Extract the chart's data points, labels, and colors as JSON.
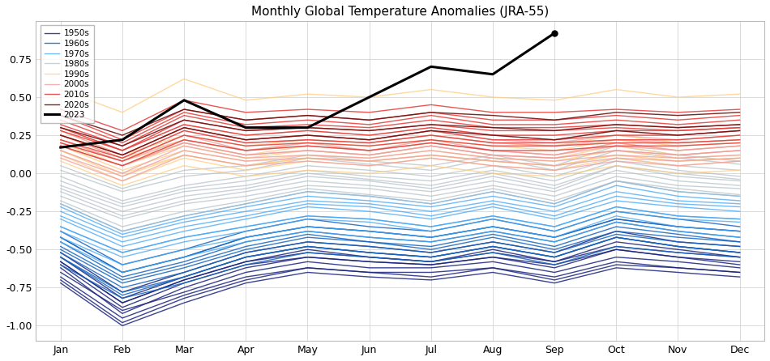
{
  "title": "Monthly Global Temperature Anomalies (JRA-55)",
  "months": [
    "Jan",
    "Feb",
    "Mar",
    "Apr",
    "May",
    "Jun",
    "Jul",
    "Aug",
    "Sep",
    "Oct",
    "Nov",
    "Dec"
  ],
  "decade_colors": {
    "1950s": "#1a237e",
    "1960s": "#1565c0",
    "1970s": "#42a5f5",
    "1980s": "#b0bec5",
    "1990s": "#ffcc80",
    "2000s": "#ef9a9a",
    "2010s": "#e53935",
    "2020s": "#6d1010",
    "2023": "#000000"
  },
  "decade_alphas": {
    "1950s": 0.85,
    "1960s": 0.85,
    "1970s": 0.75,
    "1980s": 0.7,
    "1990s": 0.75,
    "2000s": 0.75,
    "2010s": 0.85,
    "2020s": 0.9,
    "2023": 1.0
  },
  "decades": {
    "1950s": [
      [
        -0.62,
        -0.92,
        -0.75,
        -0.62,
        -0.55,
        -0.58,
        -0.6,
        -0.55,
        -0.62,
        -0.5,
        -0.55,
        -0.6
      ],
      [
        -0.58,
        -0.85,
        -0.7,
        -0.58,
        -0.52,
        -0.55,
        -0.58,
        -0.52,
        -0.58,
        -0.48,
        -0.52,
        -0.55
      ],
      [
        -0.68,
        -0.95,
        -0.8,
        -0.68,
        -0.62,
        -0.65,
        -0.65,
        -0.62,
        -0.68,
        -0.58,
        -0.62,
        -0.65
      ],
      [
        -0.55,
        -0.82,
        -0.68,
        -0.55,
        -0.48,
        -0.52,
        -0.55,
        -0.48,
        -0.55,
        -0.42,
        -0.48,
        -0.52
      ],
      [
        -0.72,
        -1.0,
        -0.85,
        -0.72,
        -0.65,
        -0.68,
        -0.7,
        -0.65,
        -0.72,
        -0.62,
        -0.65,
        -0.68
      ],
      [
        -0.6,
        -0.88,
        -0.72,
        -0.6,
        -0.55,
        -0.58,
        -0.6,
        -0.55,
        -0.6,
        -0.5,
        -0.55,
        -0.58
      ],
      [
        -0.65,
        -0.9,
        -0.78,
        -0.65,
        -0.58,
        -0.62,
        -0.62,
        -0.58,
        -0.65,
        -0.55,
        -0.58,
        -0.62
      ],
      [
        -0.52,
        -0.78,
        -0.65,
        -0.52,
        -0.45,
        -0.48,
        -0.52,
        -0.45,
        -0.52,
        -0.38,
        -0.45,
        -0.48
      ],
      [
        -0.7,
        -0.98,
        -0.82,
        -0.7,
        -0.62,
        -0.65,
        -0.68,
        -0.62,
        -0.7,
        -0.6,
        -0.62,
        -0.65
      ],
      [
        -0.58,
        -0.85,
        -0.7,
        -0.58,
        -0.5,
        -0.55,
        -0.58,
        -0.5,
        -0.58,
        -0.45,
        -0.5,
        -0.55
      ]
    ],
    "1960s": [
      [
        -0.5,
        -0.72,
        -0.62,
        -0.5,
        -0.42,
        -0.45,
        -0.5,
        -0.42,
        -0.5,
        -0.38,
        -0.42,
        -0.45
      ],
      [
        -0.42,
        -0.65,
        -0.55,
        -0.42,
        -0.35,
        -0.38,
        -0.42,
        -0.35,
        -0.42,
        -0.3,
        -0.35,
        -0.38
      ],
      [
        -0.55,
        -0.78,
        -0.68,
        -0.55,
        -0.48,
        -0.52,
        -0.55,
        -0.48,
        -0.55,
        -0.42,
        -0.48,
        -0.52
      ],
      [
        -0.45,
        -0.68,
        -0.58,
        -0.45,
        -0.38,
        -0.42,
        -0.45,
        -0.38,
        -0.45,
        -0.32,
        -0.38,
        -0.42
      ],
      [
        -0.6,
        -0.82,
        -0.72,
        -0.6,
        -0.52,
        -0.55,
        -0.58,
        -0.52,
        -0.6,
        -0.48,
        -0.52,
        -0.55
      ],
      [
        -0.38,
        -0.6,
        -0.5,
        -0.38,
        -0.3,
        -0.35,
        -0.38,
        -0.3,
        -0.38,
        -0.25,
        -0.3,
        -0.35
      ],
      [
        -0.52,
        -0.75,
        -0.65,
        -0.52,
        -0.45,
        -0.48,
        -0.52,
        -0.45,
        -0.52,
        -0.4,
        -0.45,
        -0.48
      ],
      [
        -0.48,
        -0.7,
        -0.6,
        -0.48,
        -0.4,
        -0.45,
        -0.48,
        -0.4,
        -0.48,
        -0.35,
        -0.4,
        -0.45
      ],
      [
        -0.55,
        -0.8,
        -0.68,
        -0.55,
        -0.48,
        -0.52,
        -0.55,
        -0.48,
        -0.55,
        -0.42,
        -0.48,
        -0.52
      ],
      [
        -0.42,
        -0.65,
        -0.55,
        -0.42,
        -0.35,
        -0.38,
        -0.42,
        -0.35,
        -0.42,
        -0.3,
        -0.35,
        -0.38
      ]
    ],
    "1970s": [
      [
        -0.35,
        -0.52,
        -0.42,
        -0.35,
        -0.28,
        -0.3,
        -0.35,
        -0.28,
        -0.35,
        -0.22,
        -0.28,
        -0.3
      ],
      [
        -0.28,
        -0.45,
        -0.35,
        -0.28,
        -0.2,
        -0.22,
        -0.28,
        -0.2,
        -0.28,
        -0.15,
        -0.2,
        -0.22
      ],
      [
        -0.42,
        -0.6,
        -0.5,
        -0.42,
        -0.35,
        -0.38,
        -0.42,
        -0.35,
        -0.42,
        -0.28,
        -0.35,
        -0.38
      ],
      [
        -0.22,
        -0.4,
        -0.3,
        -0.22,
        -0.15,
        -0.18,
        -0.22,
        -0.15,
        -0.22,
        -0.08,
        -0.15,
        -0.18
      ],
      [
        -0.38,
        -0.55,
        -0.45,
        -0.38,
        -0.3,
        -0.32,
        -0.38,
        -0.3,
        -0.38,
        -0.25,
        -0.3,
        -0.32
      ],
      [
        -0.3,
        -0.48,
        -0.38,
        -0.3,
        -0.22,
        -0.25,
        -0.3,
        -0.22,
        -0.3,
        -0.18,
        -0.22,
        -0.25
      ],
      [
        -0.45,
        -0.65,
        -0.55,
        -0.45,
        -0.38,
        -0.42,
        -0.45,
        -0.38,
        -0.45,
        -0.32,
        -0.38,
        -0.42
      ],
      [
        -0.2,
        -0.38,
        -0.28,
        -0.2,
        -0.12,
        -0.15,
        -0.2,
        -0.12,
        -0.2,
        -0.05,
        -0.12,
        -0.15
      ],
      [
        -0.35,
        -0.52,
        -0.42,
        -0.35,
        -0.28,
        -0.3,
        -0.35,
        -0.28,
        -0.35,
        -0.22,
        -0.28,
        -0.3
      ],
      [
        -0.25,
        -0.42,
        -0.32,
        -0.25,
        -0.18,
        -0.2,
        -0.25,
        -0.18,
        -0.25,
        -0.12,
        -0.18,
        -0.2
      ]
    ],
    "1980s": [
      [
        -0.12,
        -0.28,
        -0.18,
        -0.12,
        -0.05,
        -0.08,
        -0.12,
        -0.05,
        -0.12,
        0.02,
        -0.05,
        -0.08
      ],
      [
        -0.05,
        -0.2,
        -0.1,
        -0.05,
        0.02,
        -0.02,
        -0.05,
        0.02,
        -0.05,
        0.08,
        0.02,
        -0.02
      ],
      [
        -0.18,
        -0.35,
        -0.25,
        -0.18,
        -0.1,
        -0.14,
        -0.18,
        -0.1,
        -0.18,
        -0.05,
        -0.1,
        -0.14
      ],
      [
        0.02,
        -0.12,
        -0.02,
        0.02,
        0.1,
        0.06,
        0.02,
        0.1,
        0.02,
        0.15,
        0.1,
        0.06
      ],
      [
        -0.15,
        -0.3,
        -0.2,
        -0.15,
        -0.08,
        -0.1,
        -0.15,
        -0.08,
        -0.15,
        -0.02,
        -0.08,
        -0.1
      ],
      [
        -0.08,
        -0.22,
        -0.12,
        -0.08,
        0.0,
        -0.04,
        -0.08,
        0.0,
        -0.08,
        0.05,
        0.0,
        -0.04
      ],
      [
        -0.2,
        -0.38,
        -0.28,
        -0.2,
        -0.12,
        -0.15,
        -0.2,
        -0.12,
        -0.2,
        -0.05,
        -0.12,
        -0.15
      ],
      [
        0.05,
        -0.1,
        0.02,
        0.05,
        0.12,
        0.08,
        0.05,
        0.12,
        0.05,
        0.18,
        0.12,
        0.08
      ],
      [
        -0.1,
        -0.25,
        -0.15,
        -0.1,
        -0.02,
        -0.05,
        -0.1,
        -0.02,
        -0.1,
        0.05,
        -0.02,
        -0.05
      ],
      [
        -0.02,
        -0.18,
        -0.08,
        -0.02,
        0.05,
        0.02,
        -0.02,
        0.05,
        -0.02,
        0.1,
        0.05,
        0.02
      ]
    ],
    "1990s": [
      [
        0.15,
        -0.02,
        0.12,
        0.05,
        0.1,
        0.08,
        0.12,
        0.08,
        0.05,
        0.12,
        0.08,
        0.1
      ],
      [
        0.2,
        0.05,
        0.18,
        0.1,
        0.15,
        0.12,
        0.18,
        0.12,
        0.1,
        0.18,
        0.12,
        0.15
      ],
      [
        0.08,
        -0.08,
        0.05,
        -0.02,
        0.02,
        0.0,
        0.05,
        0.0,
        -0.02,
        0.05,
        0.0,
        0.02
      ],
      [
        0.25,
        0.1,
        0.22,
        0.15,
        0.2,
        0.18,
        0.22,
        0.18,
        0.15,
        0.22,
        0.18,
        0.2
      ],
      [
        0.12,
        -0.05,
        0.1,
        0.02,
        0.08,
        0.05,
        0.1,
        0.05,
        0.02,
        0.1,
        0.05,
        0.08
      ],
      [
        0.55,
        0.4,
        0.62,
        0.48,
        0.52,
        0.5,
        0.55,
        0.5,
        0.48,
        0.55,
        0.5,
        0.52
      ],
      [
        0.22,
        0.08,
        0.2,
        0.12,
        0.18,
        0.15,
        0.2,
        0.15,
        0.12,
        0.2,
        0.15,
        0.18
      ],
      [
        0.18,
        0.02,
        0.15,
        0.08,
        0.12,
        0.1,
        0.15,
        0.1,
        0.08,
        0.15,
        0.1,
        0.12
      ],
      [
        0.28,
        0.12,
        0.25,
        0.18,
        0.22,
        0.2,
        0.25,
        0.2,
        0.18,
        0.25,
        0.2,
        0.22
      ],
      [
        0.15,
        0.0,
        0.12,
        0.05,
        0.1,
        0.08,
        0.12,
        0.08,
        0.05,
        0.12,
        0.08,
        0.1
      ]
    ],
    "2000s": [
      [
        0.18,
        0.05,
        0.2,
        0.12,
        0.15,
        0.12,
        0.18,
        0.12,
        0.1,
        0.15,
        0.12,
        0.15
      ],
      [
        0.22,
        0.08,
        0.25,
        0.15,
        0.2,
        0.15,
        0.22,
        0.15,
        0.12,
        0.2,
        0.15,
        0.18
      ],
      [
        0.1,
        -0.05,
        0.12,
        0.05,
        0.08,
        0.05,
        0.1,
        0.05,
        0.02,
        0.08,
        0.05,
        0.08
      ],
      [
        0.28,
        0.12,
        0.3,
        0.22,
        0.25,
        0.22,
        0.28,
        0.22,
        0.2,
        0.25,
        0.22,
        0.25
      ],
      [
        0.15,
        0.0,
        0.18,
        0.1,
        0.12,
        0.1,
        0.15,
        0.1,
        0.08,
        0.12,
        0.1,
        0.12
      ],
      [
        0.25,
        0.1,
        0.28,
        0.2,
        0.22,
        0.2,
        0.25,
        0.2,
        0.18,
        0.22,
        0.2,
        0.22
      ],
      [
        0.12,
        -0.02,
        0.15,
        0.08,
        0.1,
        0.08,
        0.12,
        0.08,
        0.05,
        0.1,
        0.08,
        0.1
      ],
      [
        0.3,
        0.15,
        0.32,
        0.25,
        0.28,
        0.25,
        0.3,
        0.25,
        0.22,
        0.28,
        0.25,
        0.28
      ],
      [
        0.18,
        0.05,
        0.2,
        0.12,
        0.15,
        0.12,
        0.18,
        0.12,
        0.1,
        0.15,
        0.12,
        0.15
      ],
      [
        0.2,
        0.08,
        0.22,
        0.15,
        0.18,
        0.15,
        0.2,
        0.15,
        0.12,
        0.18,
        0.15,
        0.18
      ]
    ],
    "2010s": [
      [
        0.2,
        0.08,
        0.25,
        0.18,
        0.2,
        0.18,
        0.22,
        0.18,
        0.18,
        0.2,
        0.2,
        0.22
      ],
      [
        0.3,
        0.15,
        0.35,
        0.28,
        0.3,
        0.28,
        0.32,
        0.28,
        0.28,
        0.3,
        0.28,
        0.3
      ],
      [
        0.22,
        0.1,
        0.28,
        0.2,
        0.22,
        0.2,
        0.25,
        0.2,
        0.2,
        0.22,
        0.22,
        0.25
      ],
      [
        0.38,
        0.22,
        0.42,
        0.35,
        0.38,
        0.35,
        0.4,
        0.35,
        0.35,
        0.38,
        0.35,
        0.38
      ],
      [
        0.25,
        0.12,
        0.3,
        0.22,
        0.25,
        0.22,
        0.28,
        0.22,
        0.22,
        0.25,
        0.25,
        0.28
      ],
      [
        0.32,
        0.18,
        0.38,
        0.3,
        0.32,
        0.3,
        0.35,
        0.3,
        0.3,
        0.32,
        0.3,
        0.32
      ],
      [
        0.18,
        0.05,
        0.22,
        0.15,
        0.18,
        0.15,
        0.2,
        0.15,
        0.15,
        0.18,
        0.18,
        0.2
      ],
      [
        0.42,
        0.28,
        0.48,
        0.4,
        0.42,
        0.4,
        0.45,
        0.4,
        0.4,
        0.42,
        0.4,
        0.42
      ],
      [
        0.28,
        0.15,
        0.32,
        0.25,
        0.28,
        0.25,
        0.3,
        0.25,
        0.25,
        0.28,
        0.28,
        0.3
      ],
      [
        0.35,
        0.2,
        0.4,
        0.32,
        0.35,
        0.32,
        0.38,
        0.32,
        0.32,
        0.35,
        0.32,
        0.35
      ]
    ],
    "2020s": [
      [
        0.25,
        0.12,
        0.3,
        0.22,
        0.25,
        0.22,
        0.28,
        0.25,
        0.22,
        0.28,
        0.25,
        0.28
      ],
      [
        0.3,
        0.18,
        0.35,
        0.28,
        0.3,
        0.28,
        0.32,
        0.3,
        0.28,
        0.32,
        0.3,
        0.32
      ],
      [
        0.38,
        0.25,
        0.42,
        0.35,
        0.38,
        0.35,
        0.4,
        0.38,
        0.35,
        0.4,
        0.38,
        0.4
      ]
    ]
  },
  "line_2023": [
    0.17,
    0.22,
    0.48,
    0.3,
    0.3,
    0.5,
    0.7,
    0.65,
    0.92
  ],
  "ylim": [
    -1.1,
    1.0
  ],
  "yticks": [
    -1.0,
    -0.75,
    -0.5,
    -0.25,
    0.0,
    0.25,
    0.5,
    0.75
  ],
  "background_color": "#ffffff",
  "grid_color": "#cccccc",
  "linewidth_decade": 1.0,
  "linewidth_2023": 2.2
}
